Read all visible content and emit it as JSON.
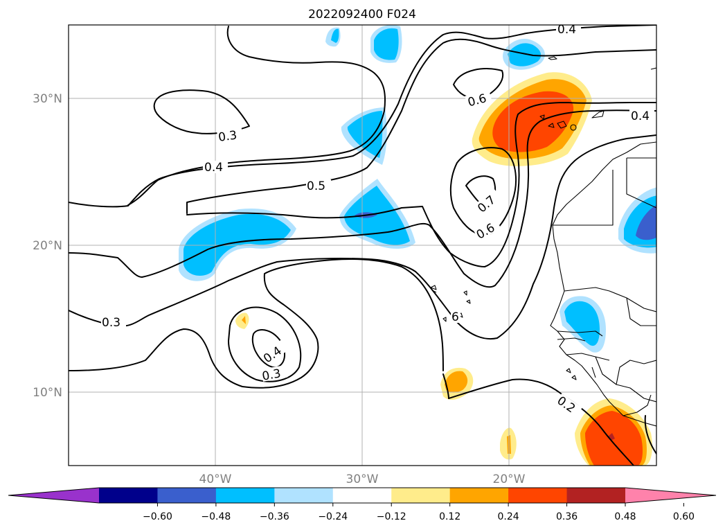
{
  "title": "2022092400 F024",
  "map": {
    "lat_labels": [
      "30°N",
      "20°N",
      "10°N"
    ],
    "lon_labels": [
      "40°W",
      "30°W",
      "20°W"
    ],
    "contour_labels": [
      "0.4",
      "0.6",
      "0.4",
      "0.3",
      "0.4",
      "0.5",
      "0.7",
      "0.6",
      "0.3",
      "0.4",
      "0.3",
      "6",
      "0.2"
    ]
  },
  "colorbar": {
    "ticks": [
      "−0.60",
      "−0.48",
      "−0.36",
      "−0.24",
      "−0.12",
      "0.12",
      "0.24",
      "0.36",
      "0.48",
      "0.60"
    ],
    "colors": [
      "#9932cc",
      "#00008b",
      "#3a5fcd",
      "#00bfff",
      "#b0e2ff",
      "#ffffff",
      "#ffec8b",
      "#ffa500",
      "#ff4500",
      "#b22222",
      "#ff82ab"
    ]
  }
}
